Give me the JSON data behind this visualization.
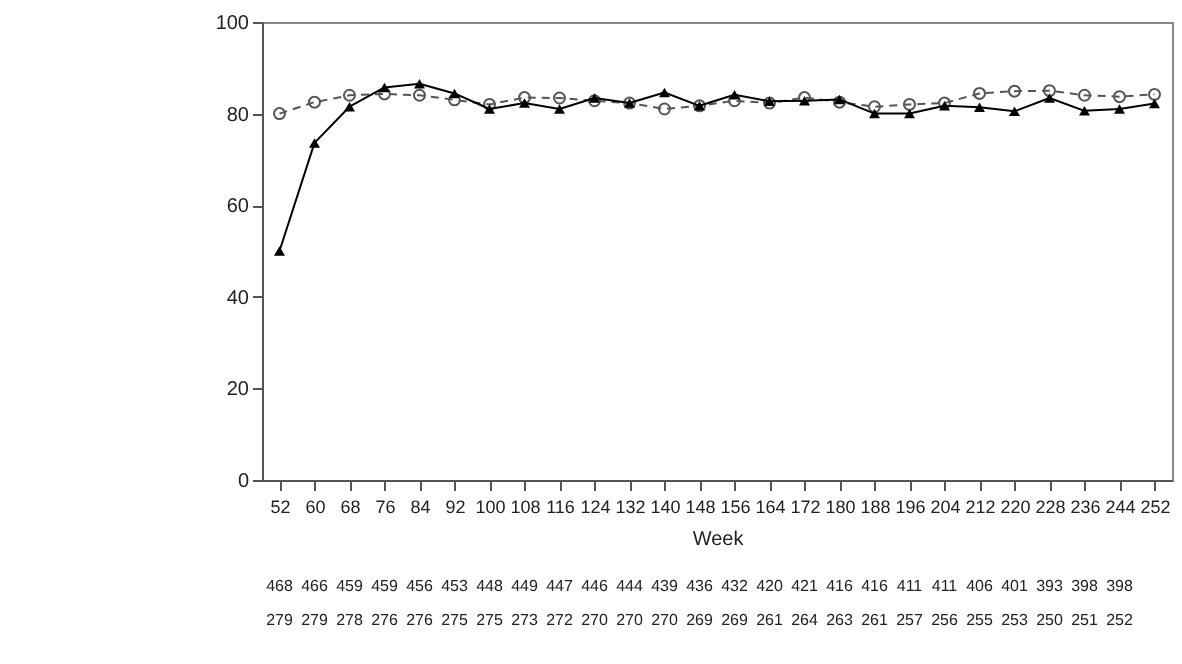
{
  "chart_data": {
    "type": "line",
    "xlabel": "Week",
    "categories": [
      "52",
      "60",
      "68",
      "76",
      "84",
      "92",
      "100",
      "108",
      "116",
      "124",
      "132",
      "140",
      "148",
      "156",
      "164",
      "172",
      "180",
      "188",
      "196",
      "204",
      "212",
      "220",
      "228",
      "236",
      "244",
      "252"
    ],
    "series": [
      {
        "color": "#555555",
        "marker": "circle",
        "line_style": "dashed",
        "values": [
          80,
          82.5,
          84,
          84.3,
          84,
          83,
          82,
          83.5,
          83.4,
          82.8,
          82.3,
          81,
          81.7,
          82.8,
          82.3,
          83.5,
          82.5,
          81.5,
          82,
          82.3,
          84.4,
          84.9,
          85,
          84,
          83.7,
          84.2
        ]
      },
      {
        "color": "#000000",
        "marker": "triangle",
        "line_style": "solid",
        "values": [
          50,
          73.6,
          81.5,
          85.7,
          86.5,
          84.4,
          81,
          82.3,
          81,
          83.4,
          82.3,
          84.6,
          81.7,
          84.1,
          82.7,
          82.8,
          83.1,
          80,
          80,
          81.7,
          81.4,
          80.5,
          83.4,
          80.6,
          81,
          82.2
        ]
      }
    ],
    "ylim": [
      0,
      100
    ],
    "yticks": [
      0,
      20,
      40,
      60,
      80,
      100
    ],
    "annotations": [
      "468 466 459 459 456 453 448 449 447 446 444 439 436 432 420 421 416 416 411 411 406 401 393 398 398",
      "279 279 278 276 276 275 275 273 272 270 270 270 269 269 261 264 263 261 257 256 255 253 250 251 252"
    ]
  }
}
